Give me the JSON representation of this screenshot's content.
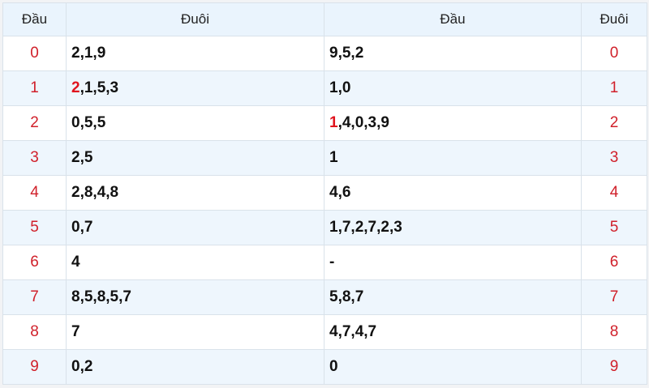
{
  "headers": [
    "Đầu",
    "Đuôi",
    "Đầu",
    "Đuôi"
  ],
  "highlight_color": "#e0141e",
  "rows": [
    {
      "left_num": "0",
      "left": [
        {
          "t": "2,1,9"
        }
      ],
      "right": [
        {
          "t": "9,5,2"
        }
      ],
      "right_num": "0"
    },
    {
      "left_num": "1",
      "left": [
        {
          "t": "2",
          "hl": true
        },
        {
          "t": ",1,5,3"
        }
      ],
      "right": [
        {
          "t": "1,0"
        }
      ],
      "right_num": "1"
    },
    {
      "left_num": "2",
      "left": [
        {
          "t": "0,5,5"
        }
      ],
      "right": [
        {
          "t": "1",
          "hl": true
        },
        {
          "t": ",4,0,3,9"
        }
      ],
      "right_num": "2"
    },
    {
      "left_num": "3",
      "left": [
        {
          "t": "2,5"
        }
      ],
      "right": [
        {
          "t": "1"
        }
      ],
      "right_num": "3"
    },
    {
      "left_num": "4",
      "left": [
        {
          "t": "2,8,4,8"
        }
      ],
      "right": [
        {
          "t": "4,6"
        }
      ],
      "right_num": "4"
    },
    {
      "left_num": "5",
      "left": [
        {
          "t": "0,7"
        }
      ],
      "right": [
        {
          "t": "1,7,2,7,2,3"
        }
      ],
      "right_num": "5"
    },
    {
      "left_num": "6",
      "left": [
        {
          "t": "4"
        }
      ],
      "right": [
        {
          "t": "-"
        }
      ],
      "right_num": "6"
    },
    {
      "left_num": "7",
      "left": [
        {
          "t": "8,5,8,5,7"
        }
      ],
      "right": [
        {
          "t": "5,8,7"
        }
      ],
      "right_num": "7"
    },
    {
      "left_num": "8",
      "left": [
        {
          "t": "7"
        }
      ],
      "right": [
        {
          "t": "4,7,4,7"
        }
      ],
      "right_num": "8"
    },
    {
      "left_num": "9",
      "left": [
        {
          "t": "0,2"
        }
      ],
      "right": [
        {
          "t": "0"
        }
      ],
      "right_num": "9"
    }
  ]
}
